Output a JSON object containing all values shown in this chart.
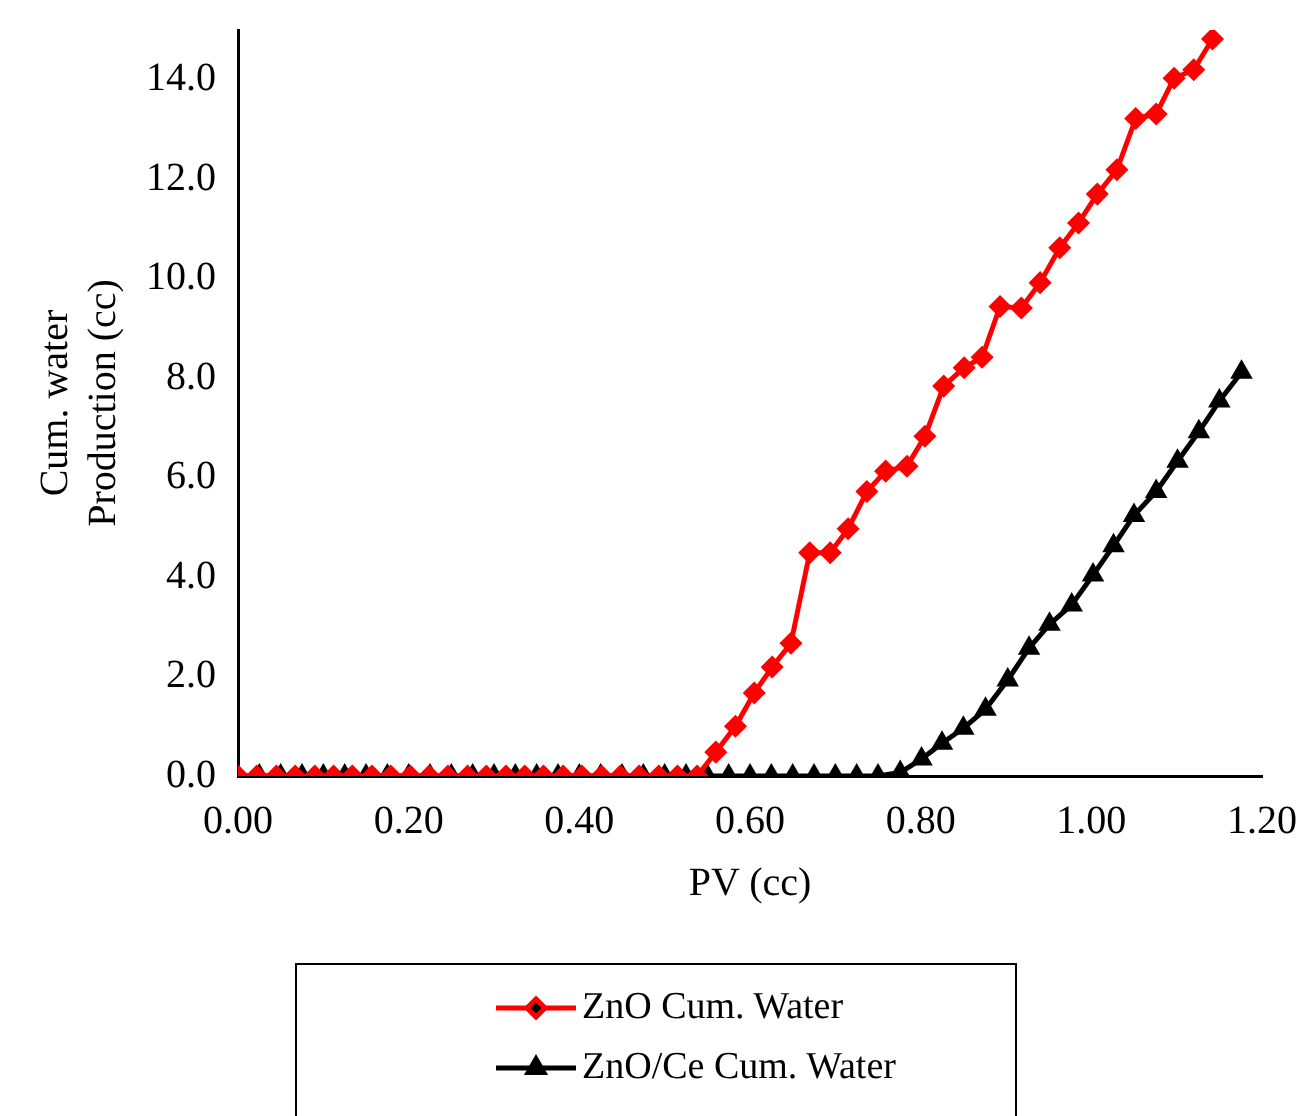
{
  "chart_data": {
    "type": "line",
    "xlabel": "PV (cc)",
    "ylabel": "Cum. water\nProduction (cc)",
    "xlim": [
      0,
      1.2
    ],
    "xticks": [
      {
        "value": 0,
        "label": "0.00"
      },
      {
        "value": 0.2,
        "label": "0.20"
      },
      {
        "value": 0.4,
        "label": "0.40"
      },
      {
        "value": 0.6,
        "label": "0.60"
      },
      {
        "value": 0.8,
        "label": "0.80"
      },
      {
        "value": 1,
        "label": "1.00"
      },
      {
        "value": 1.2,
        "label": "1.20"
      }
    ],
    "ylim": [
      0,
      15
    ],
    "yticks": [
      {
        "value": 0,
        "label": "0.0"
      },
      {
        "value": 2,
        "label": "2.0"
      },
      {
        "value": 4,
        "label": "4.0"
      },
      {
        "value": 6,
        "label": "6.0"
      },
      {
        "value": 8,
        "label": "8.0"
      },
      {
        "value": 10,
        "label": "10.0"
      },
      {
        "value": 12,
        "label": "12.0"
      },
      {
        "value": 14,
        "label": "14.0"
      }
    ],
    "grid": false,
    "legend": "bottom",
    "line_style": "solid",
    "series": [
      {
        "name": "ZnO Cum. Water",
        "color": "#ff0000",
        "marker": "diamond",
        "x": [
          0,
          0.022,
          0.045,
          0.067,
          0.09,
          0.112,
          0.134,
          0.157,
          0.179,
          0.202,
          0.224,
          0.246,
          0.269,
          0.291,
          0.314,
          0.336,
          0.358,
          0.381,
          0.403,
          0.426,
          0.448,
          0.47,
          0.493,
          0.515,
          0.538,
          0.56,
          0.583,
          0.605,
          0.626,
          0.648,
          0.67,
          0.694,
          0.715,
          0.737,
          0.759,
          0.784,
          0.805,
          0.827,
          0.851,
          0.872,
          0.893,
          0.918,
          0.94,
          0.963,
          0.985,
          1.007,
          1.03,
          1.052,
          1.076,
          1.097,
          1.12,
          1.142
        ],
        "values": [
          0,
          0,
          0,
          0,
          0,
          0,
          0,
          0,
          0,
          0,
          0,
          0,
          0,
          0,
          0,
          0,
          0,
          0,
          0,
          0,
          0,
          0,
          0,
          0,
          0,
          0.48,
          1.0,
          1.67,
          2.19,
          2.67,
          4.49,
          4.49,
          4.97,
          5.72,
          6.13,
          6.23,
          6.83,
          7.84,
          8.21,
          8.42,
          9.44,
          9.41,
          9.92,
          10.62,
          11.12,
          11.7,
          12.19,
          13.22,
          13.31,
          14.03,
          14.2,
          14.82
        ]
      },
      {
        "name": "ZnO/Ce Cum. Water",
        "color": "#000000",
        "marker": "triangle",
        "x": [
          0,
          0.025,
          0.05,
          0.075,
          0.1,
          0.125,
          0.15,
          0.175,
          0.2,
          0.225,
          0.25,
          0.275,
          0.3,
          0.325,
          0.35,
          0.375,
          0.4,
          0.425,
          0.45,
          0.475,
          0.5,
          0.525,
          0.55,
          0.575,
          0.6,
          0.625,
          0.65,
          0.675,
          0.7,
          0.725,
          0.75,
          0.776,
          0.801,
          0.825,
          0.85,
          0.876,
          0.902,
          0.927,
          0.951,
          0.977,
          1.002,
          1.026,
          1.05,
          1.076,
          1.101,
          1.126,
          1.15,
          1.176
        ],
        "values": [
          0,
          0,
          0,
          0,
          0,
          0,
          0,
          0,
          0,
          0,
          0,
          0,
          0,
          0,
          0,
          0,
          0,
          0,
          0,
          0,
          0,
          0,
          0,
          0,
          0,
          0,
          0,
          0,
          0,
          0,
          0,
          0.07,
          0.34,
          0.66,
          0.96,
          1.34,
          1.93,
          2.57,
          3.05,
          3.44,
          4.04,
          4.63,
          5.24,
          5.72,
          6.33,
          6.92,
          7.54,
          8.12
        ]
      }
    ]
  }
}
